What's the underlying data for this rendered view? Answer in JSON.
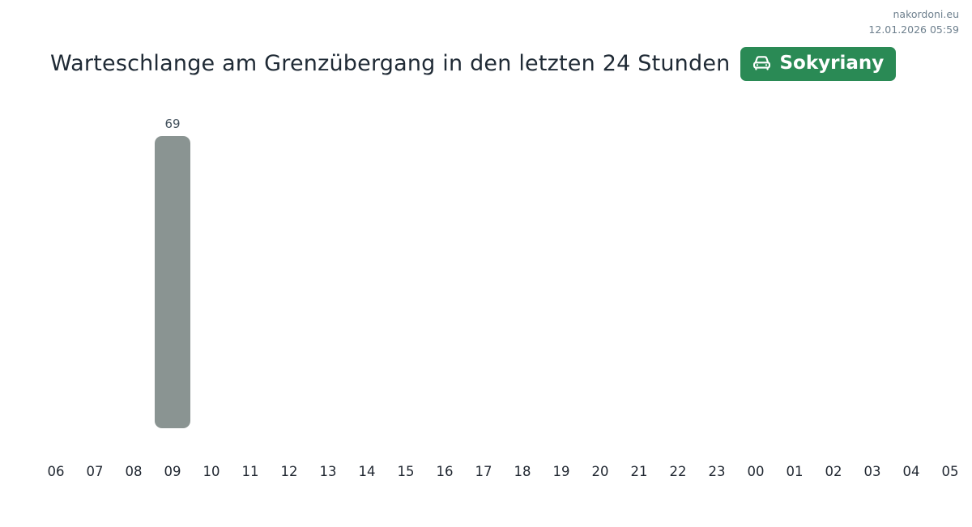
{
  "site": {
    "name": "nakordoni.eu",
    "datetime": "12.01.2026 05:59"
  },
  "header": {
    "badge": {
      "label": "Sokyriany",
      "icon": "car-front-icon",
      "color": "#2a8a55"
    }
  },
  "chart_data": {
    "type": "bar",
    "title": "Warteschlange am Grenzübergang in den letzten 24 Stunden",
    "categories": [
      "06",
      "07",
      "08",
      "09",
      "10",
      "11",
      "12",
      "13",
      "14",
      "15",
      "16",
      "17",
      "18",
      "19",
      "20",
      "21",
      "22",
      "23",
      "00",
      "01",
      "02",
      "03",
      "04",
      "05"
    ],
    "values": [
      0,
      0,
      0,
      69,
      0,
      0,
      0,
      0,
      0,
      0,
      0,
      0,
      0,
      0,
      0,
      0,
      0,
      0,
      0,
      0,
      0,
      0,
      0,
      0
    ],
    "xlabel": "",
    "ylabel": "",
    "ylim": [
      0,
      69
    ],
    "grid": false,
    "legend": false,
    "value_labels": true,
    "bar_color": "#8a9492",
    "max_value_label": "69"
  }
}
